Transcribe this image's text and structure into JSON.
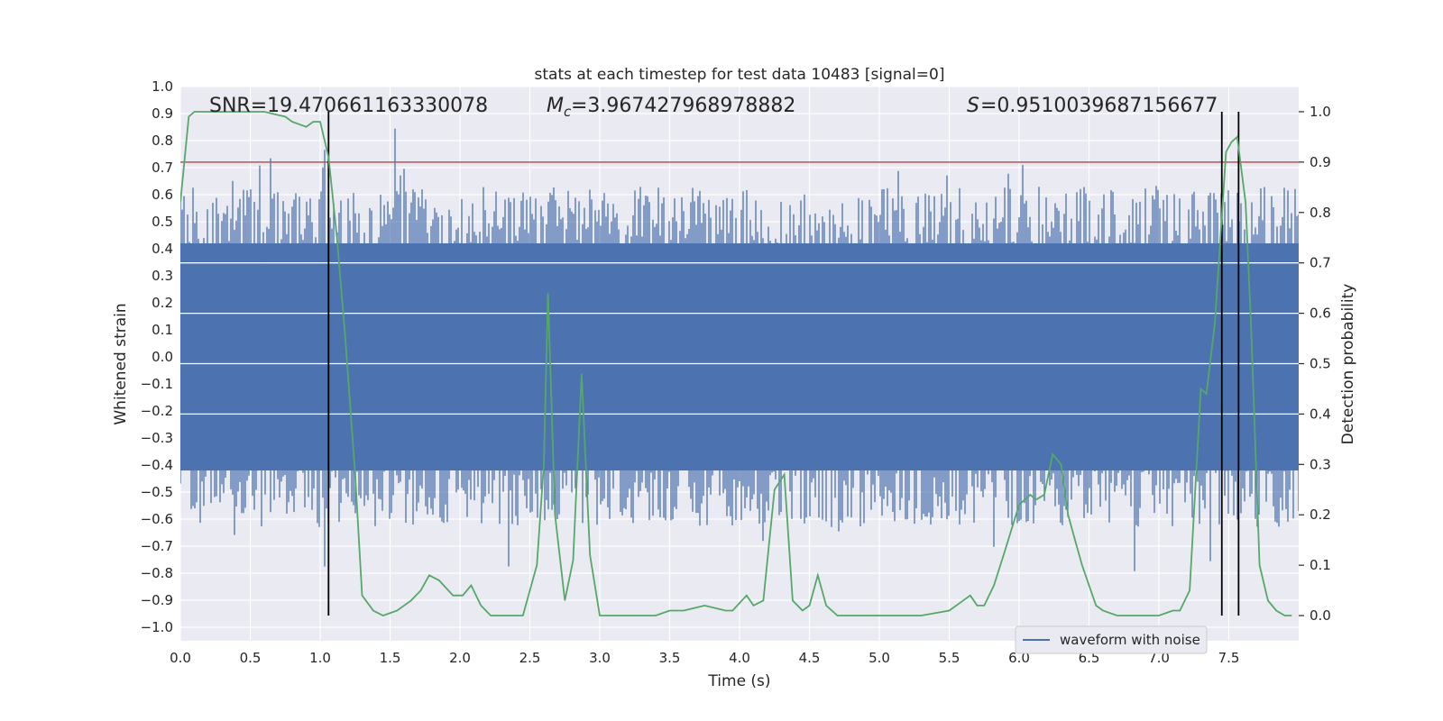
{
  "chart_data": {
    "type": "line",
    "title": "stats at each timestep for test data 10483 [signal=0]",
    "xlabel": "Time (s)",
    "ylabel_left": "Whitened strain",
    "ylabel_right": "Detection probability",
    "xlim": [
      0,
      8
    ],
    "ylim_left": [
      -1.05,
      1.0
    ],
    "ylim_right": [
      -0.05,
      1.05
    ],
    "x_ticks": [
      "0.0",
      "0.5",
      "1.0",
      "1.5",
      "2.0",
      "2.5",
      "3.0",
      "3.5",
      "4.0",
      "4.5",
      "5.0",
      "5.5",
      "6.0",
      "6.5",
      "7.0",
      "7.5"
    ],
    "x_tick_values": [
      0,
      0.5,
      1,
      1.5,
      2,
      2.5,
      3,
      3.5,
      4,
      4.5,
      5,
      5.5,
      6,
      6.5,
      7,
      7.5
    ],
    "y_ticks_left": [
      "1.0",
      "0.9",
      "0.8",
      "0.7",
      "0.6",
      "0.5",
      "0.4",
      "0.3",
      "0.2",
      "0.1",
      "0.0",
      "−0.1",
      "−0.2",
      "−0.3",
      "−0.4",
      "−0.5",
      "−0.6",
      "−0.7",
      "−0.8",
      "−0.9",
      "−1.0"
    ],
    "y_tick_values_left": [
      1.0,
      0.9,
      0.8,
      0.7,
      0.6,
      0.5,
      0.4,
      0.3,
      0.2,
      0.1,
      0.0,
      -0.1,
      -0.2,
      -0.3,
      -0.4,
      -0.5,
      -0.6,
      -0.7,
      -0.8,
      -0.9,
      -1.0
    ],
    "y_ticks_right": [
      "1.0",
      "0.9",
      "0.8",
      "0.7",
      "0.6",
      "0.5",
      "0.4",
      "0.3",
      "0.2",
      "0.1",
      "0.0"
    ],
    "y_tick_values_right": [
      1.0,
      0.9,
      0.8,
      0.7,
      0.6,
      0.5,
      0.4,
      0.3,
      0.2,
      0.1,
      0.0
    ],
    "annotations": {
      "snr": "SNR=19.470661163330078",
      "mc_value": "=3.967427968978882",
      "s_value": "=0.9510039687156677"
    },
    "legend": {
      "label": "waveform with noise",
      "placement": "lower-right"
    },
    "threshold_probability": 0.9,
    "vertical_markers_time": [
      1.06,
      7.45,
      7.57
    ],
    "grid": true,
    "series": [
      {
        "name": "waveform with noise",
        "axis": "left",
        "color": "#4c72b0",
        "kind": "noise",
        "dense_band": [
          -0.42,
          0.42
        ],
        "typical_spikes": [
          -0.58,
          0.58
        ]
      },
      {
        "axis": "right",
        "color": "#55a868",
        "x": [
          0.0,
          0.06,
          0.1,
          0.2,
          0.4,
          0.6,
          0.75,
          0.8,
          0.9,
          0.95,
          1.0,
          1.06,
          1.12,
          1.18,
          1.25,
          1.3,
          1.38,
          1.45,
          1.55,
          1.65,
          1.72,
          1.78,
          1.85,
          1.95,
          2.02,
          2.08,
          2.15,
          2.22,
          2.35,
          2.45,
          2.55,
          2.6,
          2.63,
          2.68,
          2.75,
          2.81,
          2.87,
          2.93,
          3.0,
          3.15,
          3.3,
          3.4,
          3.5,
          3.6,
          3.75,
          3.9,
          3.95,
          4.05,
          4.1,
          4.17,
          4.25,
          4.32,
          4.38,
          4.45,
          4.5,
          4.56,
          4.62,
          4.7,
          4.9,
          5.1,
          5.3,
          5.5,
          5.6,
          5.65,
          5.7,
          5.75,
          5.82,
          5.9,
          6.0,
          6.08,
          6.12,
          6.18,
          6.24,
          6.3,
          6.35,
          6.4,
          6.45,
          6.55,
          6.6,
          6.7,
          6.8,
          6.9,
          7.0,
          7.1,
          7.15,
          7.22,
          7.3,
          7.34,
          7.4,
          7.48,
          7.52,
          7.56,
          7.62,
          7.66,
          7.72,
          7.78,
          7.84,
          7.9,
          7.95
        ],
        "y": [
          0.82,
          0.99,
          1.0,
          1.0,
          1.0,
          1.0,
          0.99,
          0.98,
          0.97,
          0.98,
          0.98,
          0.91,
          0.75,
          0.55,
          0.28,
          0.04,
          0.01,
          0.0,
          0.01,
          0.03,
          0.05,
          0.08,
          0.07,
          0.04,
          0.04,
          0.06,
          0.02,
          0.0,
          0.0,
          0.0,
          0.1,
          0.3,
          0.64,
          0.2,
          0.03,
          0.11,
          0.48,
          0.12,
          0.0,
          0.0,
          0.0,
          0.0,
          0.01,
          0.01,
          0.02,
          0.01,
          0.01,
          0.04,
          0.02,
          0.03,
          0.25,
          0.28,
          0.03,
          0.01,
          0.02,
          0.08,
          0.02,
          0.0,
          0.0,
          0.0,
          0.0,
          0.01,
          0.03,
          0.04,
          0.02,
          0.02,
          0.06,
          0.13,
          0.22,
          0.24,
          0.23,
          0.24,
          0.32,
          0.3,
          0.2,
          0.15,
          0.1,
          0.02,
          0.01,
          0.0,
          0.0,
          0.0,
          0.0,
          0.01,
          0.01,
          0.05,
          0.45,
          0.44,
          0.58,
          0.92,
          0.94,
          0.95,
          0.82,
          0.57,
          0.1,
          0.03,
          0.01,
          0.0,
          0.0
        ]
      }
    ]
  }
}
